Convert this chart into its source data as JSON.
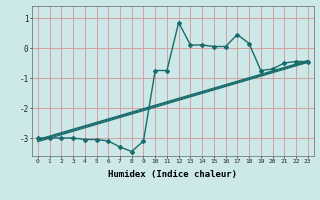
{
  "xlabel": "Humidex (Indice chaleur)",
  "background_color": "#cce8e8",
  "grid_color": "#d4a0a0",
  "line_color": "#1a6b6b",
  "xlim": [
    -0.5,
    23.5
  ],
  "ylim": [
    -3.6,
    1.4
  ],
  "xticks": [
    0,
    1,
    2,
    3,
    4,
    5,
    6,
    7,
    8,
    9,
    10,
    11,
    12,
    13,
    14,
    15,
    16,
    17,
    18,
    19,
    20,
    21,
    22,
    23
  ],
  "yticks": [
    -3,
    -2,
    -1,
    0,
    1
  ],
  "main_x": [
    0,
    1,
    2,
    3,
    4,
    5,
    6,
    7,
    8,
    9,
    10,
    11,
    12,
    13,
    14,
    15,
    16,
    17,
    18,
    19,
    20,
    21,
    22,
    23
  ],
  "main_y": [
    -3.0,
    -3.0,
    -3.0,
    -3.0,
    -3.05,
    -3.05,
    -3.1,
    -3.3,
    -3.45,
    -3.1,
    -0.75,
    -0.75,
    0.85,
    0.1,
    0.1,
    0.05,
    0.05,
    0.45,
    0.15,
    -0.75,
    -0.7,
    -0.5,
    -0.45,
    -0.45
  ],
  "line1_x": [
    0,
    23
  ],
  "line1_y": [
    -3.05,
    -0.42
  ],
  "line2_x": [
    0,
    23
  ],
  "line2_y": [
    -3.08,
    -0.45
  ],
  "line3_x": [
    0,
    23
  ],
  "line3_y": [
    -3.12,
    -0.48
  ]
}
